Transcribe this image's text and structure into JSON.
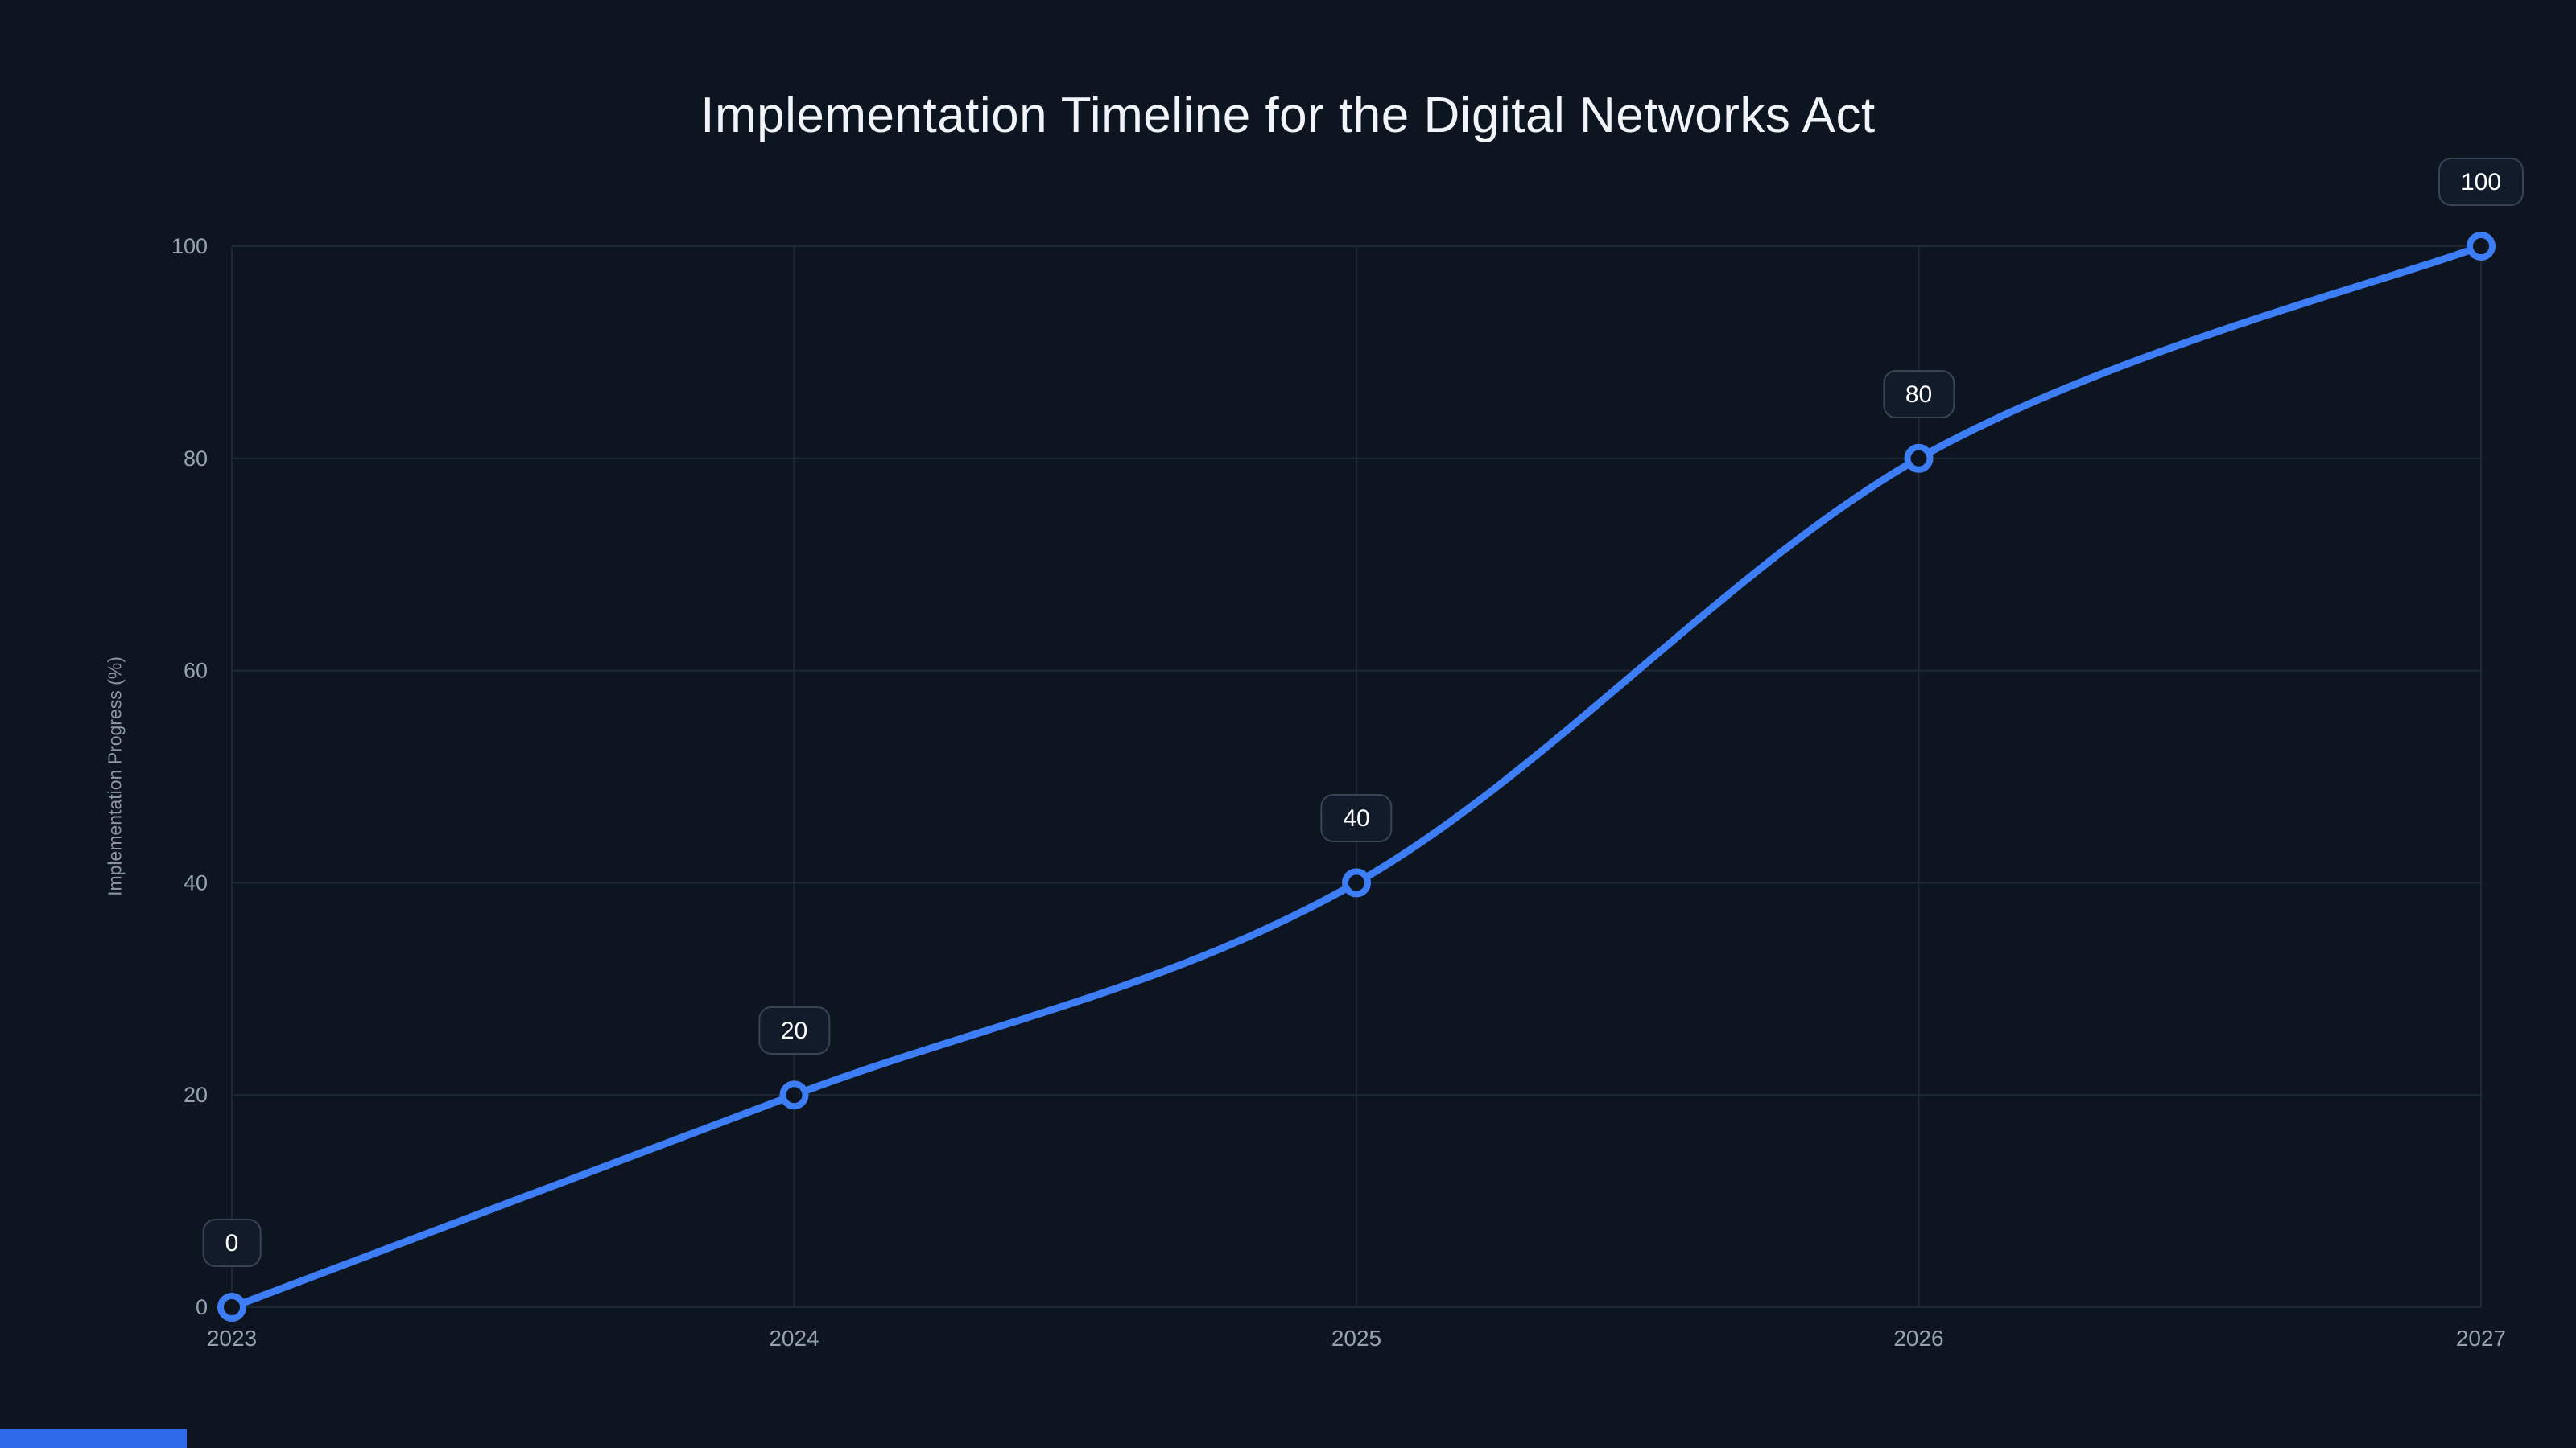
{
  "page": {
    "background": "#0D1520"
  },
  "chart_data": {
    "type": "line",
    "title": "Implementation Timeline for the Digital Networks Act",
    "xlabel": "",
    "ylabel": "Implementation Progress (%)",
    "x": [
      2023,
      2024,
      2025,
      2026,
      2027
    ],
    "series": [
      {
        "name": "Implementation Progress",
        "values": [
          0,
          20,
          40,
          80,
          100
        ]
      }
    ],
    "point_labels": [
      "0",
      "20",
      "40",
      "80",
      "100"
    ],
    "x_tick_labels": [
      "2023",
      "2024",
      "2025",
      "2026",
      "2027"
    ],
    "y_tick_labels": [
      "0",
      "20",
      "40",
      "60",
      "80",
      "100"
    ],
    "y_ticks": [
      0,
      20,
      40,
      60,
      80,
      100
    ],
    "ylim": [
      0,
      100
    ],
    "grid": true,
    "legend_position": "none",
    "colors": {
      "line": "#3D7EF7",
      "marker_ring": "#3D7EF7",
      "marker_fill": "#0D1520",
      "grid": "#1E2836",
      "tick_text": "#97A1B0",
      "title_text": "#F1F4F9",
      "badge_border": "#3A4354",
      "badge_bg": "#121B2A",
      "badge_text": "#FFFFFF"
    }
  },
  "accent_bar": {
    "color": "#2E6BEA"
  }
}
